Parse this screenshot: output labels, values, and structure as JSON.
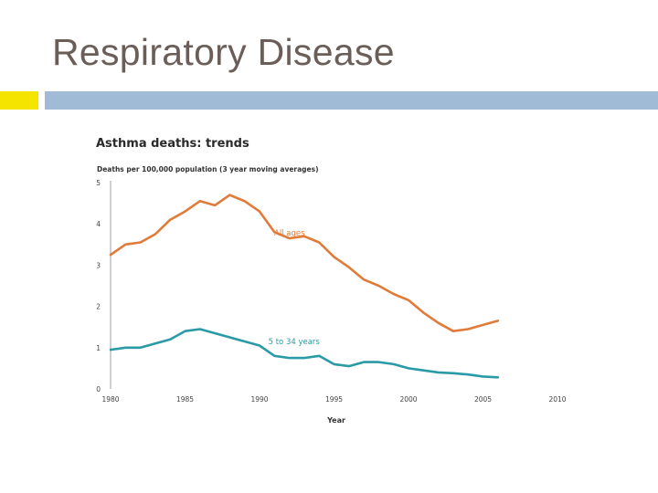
{
  "slide": {
    "title": "Respiratory Disease"
  },
  "colors": {
    "accent_yellow": "#f5e300",
    "accent_blue": "#9fbbd6",
    "series_all_ages": "#e07b39",
    "series_5_34": "#2a9aa6"
  },
  "chart_data": {
    "type": "line",
    "title": "Asthma deaths: trends",
    "ylabel": "Deaths per 100,000 population (3 year moving averages)",
    "xlabel": "Year",
    "xlim": [
      1980,
      2010
    ],
    "ylim": [
      0,
      5
    ],
    "x_ticks": [
      1980,
      1985,
      1990,
      1995,
      2000,
      2005,
      2010
    ],
    "y_ticks": [
      0,
      1,
      2,
      3,
      4,
      5
    ],
    "grid": false,
    "legend": "inline labels",
    "series": [
      {
        "name": "All ages",
        "x": [
          1980,
          1981,
          1982,
          1983,
          1984,
          1985,
          1986,
          1987,
          1988,
          1989,
          1990,
          1991,
          1992,
          1993,
          1994,
          1995,
          1996,
          1997,
          1998,
          1999,
          2000,
          2001,
          2002,
          2003,
          2004,
          2005,
          2006
        ],
        "values": [
          3.25,
          3.5,
          3.55,
          3.75,
          4.1,
          4.3,
          4.55,
          4.45,
          4.7,
          4.55,
          4.3,
          3.8,
          3.65,
          3.7,
          3.55,
          3.2,
          2.95,
          2.65,
          2.5,
          2.3,
          2.15,
          1.85,
          1.6,
          1.4,
          1.45,
          1.55,
          1.65
        ]
      },
      {
        "name": "5 to 34 years",
        "x": [
          1980,
          1981,
          1982,
          1983,
          1984,
          1985,
          1986,
          1987,
          1988,
          1989,
          1990,
          1991,
          1992,
          1993,
          1994,
          1995,
          1996,
          1997,
          1998,
          1999,
          2000,
          2001,
          2002,
          2003,
          2004,
          2005,
          2006
        ],
        "values": [
          0.95,
          1.0,
          1.0,
          1.1,
          1.2,
          1.4,
          1.45,
          1.35,
          1.25,
          1.15,
          1.05,
          0.8,
          0.75,
          0.75,
          0.8,
          0.6,
          0.55,
          0.65,
          0.65,
          0.6,
          0.5,
          0.45,
          0.4,
          0.38,
          0.35,
          0.3,
          0.28
        ]
      }
    ]
  }
}
